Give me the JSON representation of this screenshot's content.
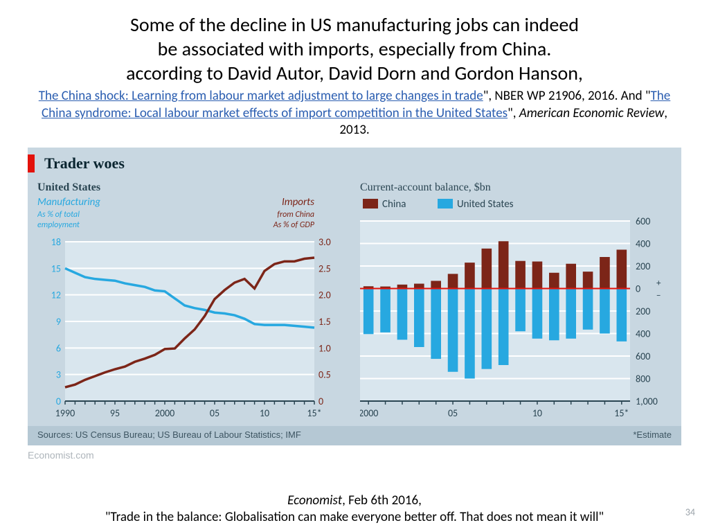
{
  "title": {
    "line1": "Some of the decline in US manufacturing jobs can indeed",
    "line2": "be associated with imports, especially from China.",
    "line3": "according to David Autor, David Dorn and Gordon Hanson,"
  },
  "citations": {
    "link1_text": "The China shock: Learning from labour market adjustment to large changes in trade",
    "mid1": "\", NBER WP 21906, 2016.  And \"",
    "link2_text": "The China syndrome: Local labour market effects of import competition in the United States",
    "tail": "\", ",
    "italic_journal": "American Economic Review",
    "tail2": ", 2013.",
    "link_color": "#2a5db0"
  },
  "chart": {
    "panel_bg": "#c8d7e1",
    "plot_bg": "#d9e6ee",
    "grid_color": "#ffffff",
    "red_accent": "#e3120b",
    "tick_color": "#2a4552",
    "label_color": "#5f7585",
    "title": "Trader woes",
    "sources": "Sources: US Census Bureau; US Bureau of Labour Statistics; IMF",
    "estimate_note": "*Estimate",
    "economist_tag": "Economist.com"
  },
  "left_chart": {
    "type": "dual-axis-line",
    "header": "United States",
    "left_series_label1": "Manufacturing",
    "left_series_label2": "As % of total",
    "left_series_label3": "employment",
    "left_series_color": "#27a8e0",
    "right_series_label1": "Imports",
    "right_series_label2": "from China",
    "right_series_label3": "As % of GDP",
    "right_series_color": "#7c2518",
    "x_years": [
      1990,
      1991,
      1992,
      1993,
      1994,
      1995,
      1996,
      1997,
      1998,
      1999,
      2000,
      2001,
      2002,
      2003,
      2004,
      2005,
      2006,
      2007,
      2008,
      2009,
      2010,
      2011,
      2012,
      2013,
      2014,
      2015
    ],
    "x_tick_labels": [
      "1990",
      "95",
      "2000",
      "05",
      "10",
      "15*"
    ],
    "x_tick_years": [
      1990,
      1995,
      2000,
      2005,
      2010,
      2015
    ],
    "left_y_min": 0,
    "left_y_max": 18,
    "left_y_ticks": [
      0,
      3,
      6,
      9,
      12,
      15,
      18
    ],
    "right_y_min": 0,
    "right_y_max": 3.0,
    "right_y_ticks": [
      "0",
      "0.5",
      "1.0",
      "1.5",
      "2.0",
      "2.5",
      "3.0"
    ],
    "manufacturing": [
      15.0,
      14.5,
      14.0,
      13.8,
      13.7,
      13.6,
      13.3,
      13.1,
      12.9,
      12.5,
      12.4,
      11.6,
      10.8,
      10.5,
      10.3,
      10.0,
      9.9,
      9.7,
      9.3,
      8.7,
      8.6,
      8.6,
      8.6,
      8.5,
      8.4,
      8.3
    ],
    "imports": [
      0.26,
      0.31,
      0.4,
      0.47,
      0.54,
      0.6,
      0.65,
      0.74,
      0.8,
      0.87,
      0.98,
      0.99,
      1.18,
      1.35,
      1.6,
      1.92,
      2.09,
      2.23,
      2.3,
      2.12,
      2.45,
      2.58,
      2.63,
      2.63,
      2.68,
      2.7
    ]
  },
  "right_chart": {
    "type": "stacked-bar-divergent",
    "header": "Current-account balance, $bn",
    "legend": {
      "china_label": "China",
      "china_color": "#7c2518",
      "us_label": "United States",
      "us_color": "#27a8e0"
    },
    "x_years": [
      2000,
      2001,
      2002,
      2003,
      2004,
      2005,
      2006,
      2007,
      2008,
      2009,
      2010,
      2011,
      2012,
      2013,
      2014,
      2015
    ],
    "x_tick_labels": [
      "2000",
      "05",
      "10",
      "15*"
    ],
    "x_tick_years": [
      2000,
      2005,
      2010,
      2015
    ],
    "y_min": -1000,
    "y_max": 600,
    "y_tick_pos": [
      600,
      400,
      200,
      0,
      200,
      400,
      600,
      800,
      "1,000"
    ],
    "y_tick_values": [
      600,
      400,
      200,
      0,
      -200,
      -400,
      -600,
      -800,
      -1000
    ],
    "plus_minus": {
      "plus": "+",
      "minus": "−"
    },
    "china": [
      20,
      18,
      35,
      43,
      68,
      130,
      230,
      355,
      420,
      245,
      240,
      140,
      220,
      150,
      280,
      345
    ],
    "us": [
      -405,
      -390,
      -455,
      -520,
      -625,
      -740,
      -800,
      -715,
      -680,
      -380,
      -445,
      -460,
      -445,
      -365,
      -400,
      -470
    ],
    "bar_width": 0.6
  },
  "footer": {
    "italic_source": "Economist",
    "date": ", Feb 6th 2016,",
    "quote": "\"Trade in the balance: Globalisation can make everyone better off. That does not mean it will\""
  },
  "page_number": "34"
}
